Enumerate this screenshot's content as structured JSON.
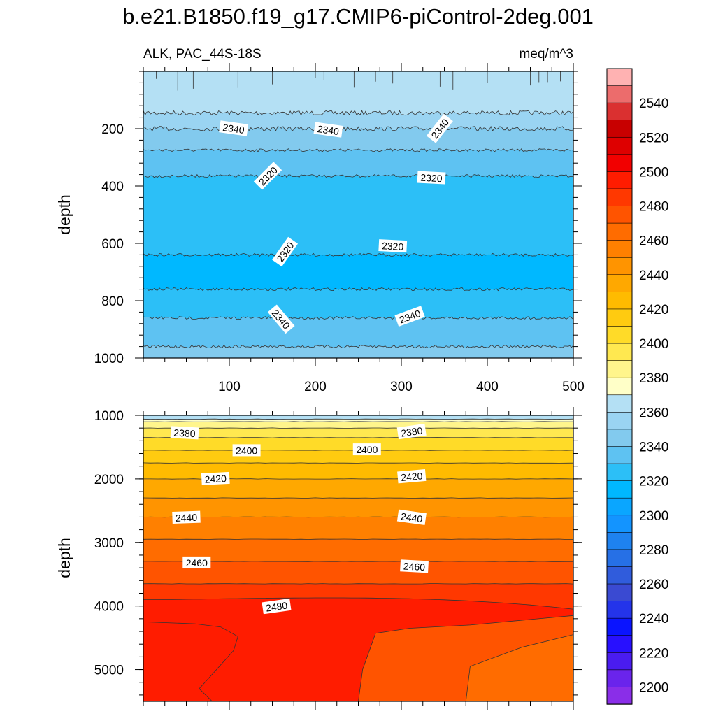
{
  "title": "b.e21.B1850.f19_g17.CMIP6-piControl-2deg.001",
  "chart_data": [
    {
      "type": "contour",
      "panel": "upper",
      "left_label": "ALK, PAC_44S-18S",
      "right_label": "meq/m^3",
      "ylabel": "depth",
      "xlim": [
        0,
        500
      ],
      "ylim": [
        0,
        1000
      ],
      "y_reversed": true,
      "xticks": [
        100,
        200,
        300,
        400,
        500
      ],
      "yticks": [
        200,
        400,
        600,
        800,
        1000
      ],
      "contour_levels": [
        2360,
        2350,
        2340,
        2330,
        2320,
        2310,
        2320,
        2330,
        2340,
        2350
      ],
      "level_depths": [
        145,
        200,
        275,
        365,
        640,
        760,
        860,
        960
      ],
      "contour_labels": [
        {
          "text": "2340",
          "x": 105,
          "y": 200,
          "angle": 8
        },
        {
          "text": "2340",
          "x": 215,
          "y": 205,
          "angle": 8
        },
        {
          "text": "2340",
          "x": 345,
          "y": 200,
          "angle": -52
        },
        {
          "text": "2320",
          "x": 145,
          "y": 365,
          "angle": -45
        },
        {
          "text": "2320",
          "x": 335,
          "y": 372,
          "angle": 3
        },
        {
          "text": "2320",
          "x": 165,
          "y": 630,
          "angle": -55
        },
        {
          "text": "2320",
          "x": 290,
          "y": 610,
          "angle": 3
        },
        {
          "text": "2340",
          "x": 160,
          "y": 865,
          "angle": 50
        },
        {
          "text": "2340",
          "x": 310,
          "y": 855,
          "angle": -20
        }
      ]
    },
    {
      "type": "contour",
      "panel": "lower",
      "ylabel": "depth",
      "xlim": [
        0,
        500
      ],
      "ylim": [
        1000,
        5500
      ],
      "y_reversed": true,
      "yticks": [
        1000,
        2000,
        3000,
        4000,
        5000
      ],
      "contour_levels": [
        2360,
        2370,
        2380,
        2390,
        2400,
        2410,
        2420,
        2430,
        2440,
        2450,
        2460,
        2470,
        2480,
        2490
      ],
      "contour_labels": [
        {
          "text": "2380",
          "x": 48,
          "y": 1280,
          "angle": 3
        },
        {
          "text": "2380",
          "x": 312,
          "y": 1260,
          "angle": -8
        },
        {
          "text": "2400",
          "x": 120,
          "y": 1555,
          "angle": 0
        },
        {
          "text": "2400",
          "x": 260,
          "y": 1540,
          "angle": 0
        },
        {
          "text": "2420",
          "x": 84,
          "y": 2000,
          "angle": -3
        },
        {
          "text": "2420",
          "x": 312,
          "y": 1965,
          "angle": -5
        },
        {
          "text": "2440",
          "x": 50,
          "y": 2610,
          "angle": -2
        },
        {
          "text": "2440",
          "x": 312,
          "y": 2610,
          "angle": 8
        },
        {
          "text": "2460",
          "x": 62,
          "y": 3320,
          "angle": 0
        },
        {
          "text": "2460",
          "x": 315,
          "y": 3380,
          "angle": 3
        },
        {
          "text": "2480",
          "x": 155,
          "y": 4010,
          "angle": -8
        }
      ]
    }
  ],
  "colorbar": {
    "labels": [
      "2540",
      "2520",
      "2500",
      "2480",
      "2460",
      "2440",
      "2420",
      "2400",
      "2380",
      "2360",
      "2340",
      "2320",
      "2300",
      "2280",
      "2260",
      "2240",
      "2220",
      "2200"
    ],
    "colors": [
      "#ffb2b2",
      "#ec6c6c",
      "#da3030",
      "#c80000",
      "#de0000",
      "#f20000",
      "#ff1c00",
      "#ff3800",
      "#ff5400",
      "#ff6c00",
      "#ff8000",
      "#ff9400",
      "#ffa800",
      "#ffbb00",
      "#ffcb10",
      "#ffdb28",
      "#ffe850",
      "#fff58c",
      "#ffffc8",
      "#b4e0f4",
      "#9ad4f2",
      "#82caee",
      "#5ec2f2",
      "#2cbff7",
      "#00b8ff",
      "#0aa6ff",
      "#1394ff",
      "#1e82f0",
      "#2670e6",
      "#305cdc",
      "#3a4ad2",
      "#2434ea",
      "#0a14ff",
      "#2810ff",
      "#4a1cf0",
      "#6a24ec",
      "#8a2ee8"
    ]
  }
}
